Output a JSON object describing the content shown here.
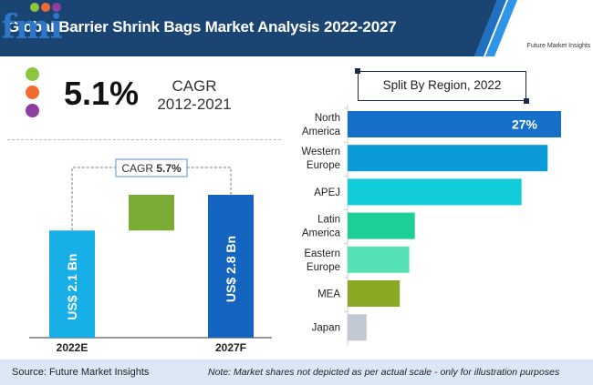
{
  "header": {
    "title": "Global Barrier Shrink Bags Market Analysis 2022-2027",
    "logo_text": "fmi",
    "logo_subtitle": "Future Market Insights",
    "colors": {
      "band": "#1a4572",
      "accent1": "#1f6fc2",
      "accent2": "#2f95e8"
    }
  },
  "highlight": {
    "value": "5.1%",
    "label_line1": "CAGR",
    "label_line2": "2012-2021",
    "dot_colors": [
      "#8cc63e",
      "#f26a2e",
      "#8e3ea0"
    ]
  },
  "footer": {
    "source": "Source: Future Market Insights",
    "note": "Note: Market shares not depicted as per actual scale - only for illustration purposes"
  },
  "chart_data": [
    {
      "type": "bar",
      "title": "",
      "categories": [
        "2022E",
        "2027F"
      ],
      "values": [
        2.1,
        2.8
      ],
      "value_labels": [
        "US$ 2.1 Bn",
        "US$ 2.8 Bn"
      ],
      "unit": "US$ Bn",
      "annotation": {
        "label": "CAGR",
        "value": "5.7%"
      },
      "colors": [
        "#18aee8",
        "#1565c0"
      ],
      "increment_color": "#7aab35",
      "ylim": [
        0,
        2.8
      ]
    },
    {
      "type": "bar",
      "orientation": "horizontal",
      "title": "Split By Region, 2022",
      "categories": [
        [
          "North",
          "America"
        ],
        [
          "Western",
          "Europe"
        ],
        [
          "APEJ"
        ],
        [
          "Latin",
          "America"
        ],
        [
          "Eastern",
          "Europe"
        ],
        [
          "MEA"
        ],
        [
          "Japan"
        ]
      ],
      "values": [
        27,
        25.3,
        22,
        8.5,
        7.8,
        6.6,
        2.4
      ],
      "data_labels": [
        "27%",
        "",
        "",
        "",
        "",
        "",
        ""
      ],
      "colors": [
        "#1670c9",
        "#0b9bd9",
        "#12cbd8",
        "#1bcf97",
        "#55e1b5",
        "#8aa824",
        "#c3c9d4"
      ],
      "unit": "%",
      "xlim": [
        0,
        30
      ]
    }
  ]
}
